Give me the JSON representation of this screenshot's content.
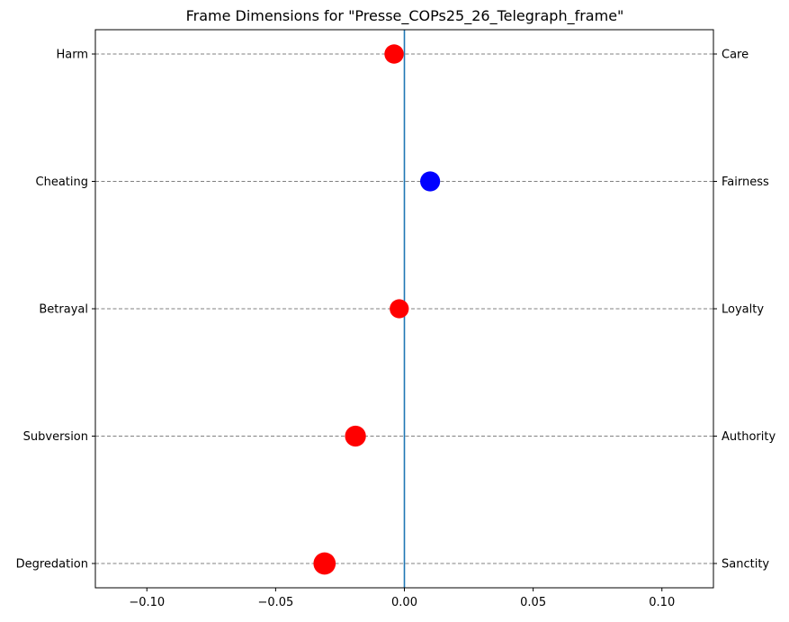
{
  "chart_data": {
    "type": "scatter",
    "title": "Frame Dimensions for \"Presse_COPs25_26_Telegraph_frame\"",
    "xlabel": "",
    "ylabel": "",
    "xlim": [
      -0.12,
      0.12
    ],
    "x_ticks": [
      -0.1,
      -0.05,
      0.0,
      0.05,
      0.1
    ],
    "x_tick_labels": [
      "−0.10",
      "−0.05",
      "0.00",
      "0.05",
      "0.10"
    ],
    "y_categories_left": [
      "Harm",
      "Cheating",
      "Betrayal",
      "Subversion",
      "Degredation"
    ],
    "y_categories_right": [
      "Care",
      "Fairness",
      "Loyalty",
      "Authority",
      "Sanctity"
    ],
    "zero_line": 0.0,
    "grid": "horizontal dashed",
    "points": [
      {
        "left": "Harm",
        "right": "Care",
        "value": -0.004,
        "color": "#ff0000",
        "magnitude": 0.004
      },
      {
        "left": "Cheating",
        "right": "Fairness",
        "value": 0.01,
        "color": "#0000ff",
        "magnitude": 0.01
      },
      {
        "left": "Betrayal",
        "right": "Loyalty",
        "value": -0.002,
        "color": "#ff0000",
        "magnitude": 0.002
      },
      {
        "left": "Subversion",
        "right": "Authority",
        "value": -0.019,
        "color": "#ff0000",
        "magnitude": 0.019
      },
      {
        "left": "Degredation",
        "right": "Sanctity",
        "value": -0.031,
        "color": "#ff0000",
        "magnitude": 0.031
      }
    ],
    "colors": {
      "negative": "#ff0000",
      "positive": "#0000ff",
      "zero_line": "#1f77b4",
      "grid": "#808080"
    }
  }
}
